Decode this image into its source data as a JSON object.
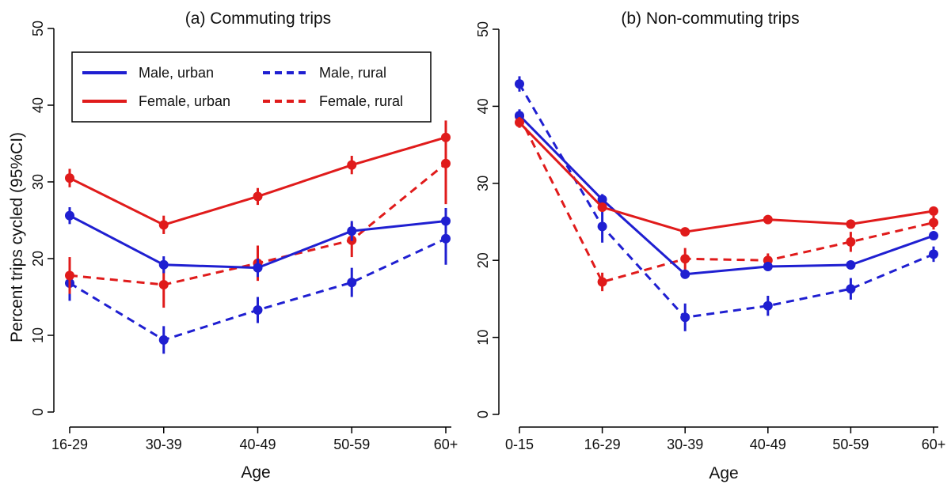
{
  "chart_data": [
    {
      "type": "line",
      "title": "(a) Commuting trips",
      "xlabel": "Age",
      "ylabel": "Percent trips cycled (95%CI)",
      "categories": [
        "16-29",
        "30-39",
        "40-49",
        "50-59",
        "60+"
      ],
      "ylim": [
        0,
        50
      ],
      "yticks": [
        0,
        10,
        20,
        30,
        40,
        50
      ],
      "grid": false,
      "legend": {
        "placement": "top-left",
        "entries": [
          {
            "label": "Male, urban",
            "series": "Male, urban"
          },
          {
            "label": "Male, rural",
            "series": "Male, rural"
          },
          {
            "label": "Female, urban",
            "series": "Female, urban"
          },
          {
            "label": "Female, rural",
            "series": "Female, rural"
          }
        ]
      },
      "series": [
        {
          "name": "Male, urban",
          "color": "#1f1fd1",
          "dash": false,
          "values": [
            25.6,
            19.2,
            18.8,
            23.6,
            24.9
          ],
          "ci_low": [
            24.5,
            18.1,
            17.6,
            22.3,
            23.2
          ],
          "ci_high": [
            26.7,
            20.3,
            20.0,
            24.9,
            26.6
          ]
        },
        {
          "name": "Female, urban",
          "color": "#e01b1b",
          "dash": false,
          "values": [
            30.5,
            24.4,
            28.1,
            32.2,
            35.8
          ],
          "ci_low": [
            29.3,
            23.2,
            27.0,
            31.0,
            33.6
          ],
          "ci_high": [
            31.7,
            25.6,
            29.2,
            33.4,
            38.0
          ]
        },
        {
          "name": "Male, rural",
          "color": "#1f1fd1",
          "dash": true,
          "values": [
            16.8,
            9.4,
            13.3,
            16.9,
            22.6
          ],
          "ci_low": [
            14.5,
            7.6,
            11.6,
            15.0,
            19.2
          ],
          "ci_high": [
            19.1,
            11.2,
            15.0,
            18.8,
            26.0
          ]
        },
        {
          "name": "Female, rural",
          "color": "#e01b1b",
          "dash": true,
          "values": [
            17.8,
            16.6,
            19.4,
            22.4,
            32.4
          ],
          "ci_low": [
            15.4,
            13.6,
            17.1,
            20.2,
            27.1
          ],
          "ci_high": [
            20.2,
            19.6,
            21.7,
            24.6,
            37.7
          ]
        }
      ]
    },
    {
      "type": "line",
      "title": "(b) Non-commuting trips",
      "xlabel": "Age",
      "ylabel": "",
      "categories": [
        "0-15",
        "16-29",
        "30-39",
        "40-49",
        "50-59",
        "60+"
      ],
      "ylim": [
        0,
        50
      ],
      "yticks": [
        0,
        10,
        20,
        30,
        40,
        50
      ],
      "grid": false,
      "series": [
        {
          "name": "Male, urban",
          "color": "#1f1fd1",
          "dash": false,
          "values": [
            38.8,
            27.9,
            18.2,
            19.2,
            19.4,
            23.2
          ],
          "ci_low": [
            38.0,
            27.2,
            17.6,
            18.7,
            18.9,
            22.7
          ],
          "ci_high": [
            39.6,
            28.6,
            18.8,
            19.7,
            19.9,
            23.7
          ]
        },
        {
          "name": "Female, urban",
          "color": "#e01b1b",
          "dash": false,
          "values": [
            37.9,
            26.9,
            23.7,
            25.3,
            24.7,
            26.4
          ],
          "ci_low": [
            37.2,
            26.3,
            23.2,
            24.8,
            24.2,
            25.9
          ],
          "ci_high": [
            38.6,
            27.5,
            24.2,
            25.8,
            25.2,
            26.9
          ]
        },
        {
          "name": "Male, rural",
          "color": "#1f1fd1",
          "dash": true,
          "values": [
            42.9,
            24.4,
            12.6,
            14.1,
            16.3,
            20.8
          ],
          "ci_low": [
            41.9,
            22.3,
            10.8,
            12.8,
            14.9,
            19.8
          ],
          "ci_high": [
            43.9,
            26.5,
            14.4,
            15.4,
            17.7,
            21.8
          ]
        },
        {
          "name": "Female, rural",
          "color": "#e01b1b",
          "dash": true,
          "values": [
            38.7,
            17.2,
            20.2,
            20.0,
            22.4,
            24.9
          ],
          "ci_low": [
            37.9,
            16.0,
            18.8,
            19.1,
            21.1,
            24.0
          ],
          "ci_high": [
            39.5,
            18.4,
            21.6,
            20.9,
            23.7,
            25.8
          ]
        }
      ]
    }
  ]
}
